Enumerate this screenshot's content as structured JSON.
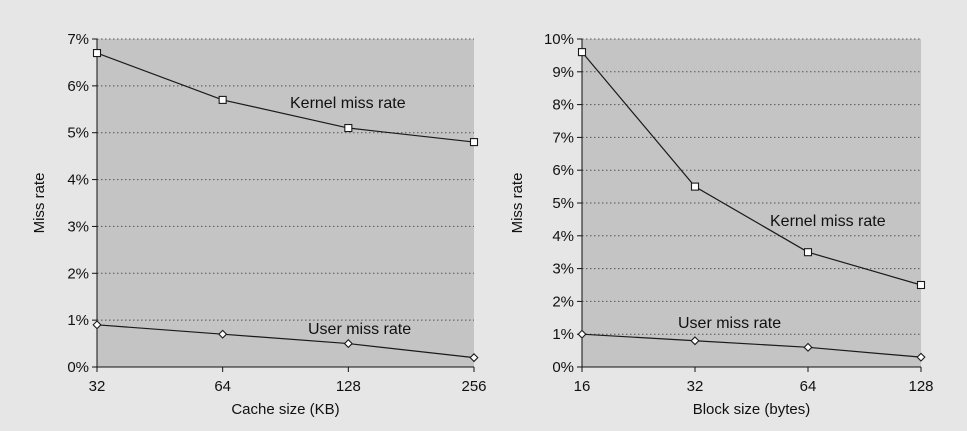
{
  "colors": {
    "page_background": "#e6e6e6",
    "plot_background": "#c4c4c4",
    "gridline": "#555555",
    "series_line": "#1a1a1a",
    "marker_fill": "#ffffff"
  },
  "chart_data": [
    {
      "type": "line",
      "xlabel": "Cache size (KB)",
      "ylabel": "Miss rate",
      "x_scale": "log2",
      "categories": [
        "32",
        "64",
        "128",
        "256"
      ],
      "x": [
        32,
        64,
        128,
        256
      ],
      "ylim": [
        0,
        7
      ],
      "y_ticks": [
        0,
        1,
        2,
        3,
        4,
        5,
        6,
        7
      ],
      "y_tick_labels": [
        "0%",
        "1%",
        "2%",
        "3%",
        "4%",
        "5%",
        "6%",
        "7%"
      ],
      "grid": "horizontal dotted",
      "series": [
        {
          "name": "Kernel miss rate",
          "marker": "square",
          "values": [
            6.7,
            5.7,
            5.1,
            4.8
          ]
        },
        {
          "name": "User miss rate",
          "marker": "diamond",
          "values": [
            0.9,
            0.7,
            0.5,
            0.2
          ]
        }
      ]
    },
    {
      "type": "line",
      "xlabel": "Block size (bytes)",
      "ylabel": "Miss rate",
      "x_scale": "log2",
      "categories": [
        "16",
        "32",
        "64",
        "128"
      ],
      "x": [
        16,
        32,
        64,
        128
      ],
      "ylim": [
        0,
        10
      ],
      "y_ticks": [
        0,
        1,
        2,
        3,
        4,
        5,
        6,
        7,
        8,
        9,
        10
      ],
      "y_tick_labels": [
        "0%",
        "1%",
        "2%",
        "3%",
        "4%",
        "5%",
        "6%",
        "7%",
        "8%",
        "9%",
        "10%"
      ],
      "grid": "horizontal dotted",
      "series": [
        {
          "name": "Kernel miss rate",
          "marker": "square",
          "values": [
            9.6,
            5.5,
            3.5,
            2.5
          ]
        },
        {
          "name": "User miss rate",
          "marker": "diamond",
          "values": [
            1.0,
            0.8,
            0.6,
            0.3
          ]
        }
      ]
    }
  ]
}
